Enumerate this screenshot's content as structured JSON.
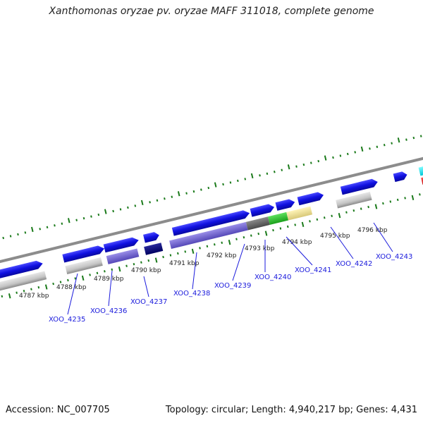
{
  "title": "Xanthomonas oryzae pv. oryzae MAFF 311018, complete genome",
  "footer": {
    "accession": "Accession: NC_007705",
    "summary": "Topology: circular; Length: 4,940,217 bp; Genes: 4,431"
  },
  "kbp_labels": [
    "4787 kbp",
    "4788 kbp",
    "4789 kbp",
    "4790 kbp",
    "4791 kbp",
    "4792 kbp",
    "4793 kbp",
    "4794 kbp",
    "4795 kbp",
    "4796 kbp"
  ],
  "gene_labels": [
    "XOO_4235",
    "XOO_4236",
    "XOO_4237",
    "XOO_4238",
    "XOO_4239",
    "XOO_4240",
    "XOO_4241",
    "XOO_4242",
    "XOO_4243"
  ],
  "colors": {
    "gene_arrow": "#1212e0",
    "tick": "#1a7a1a",
    "backbone": "#808080",
    "label": "#1a1adc"
  }
}
